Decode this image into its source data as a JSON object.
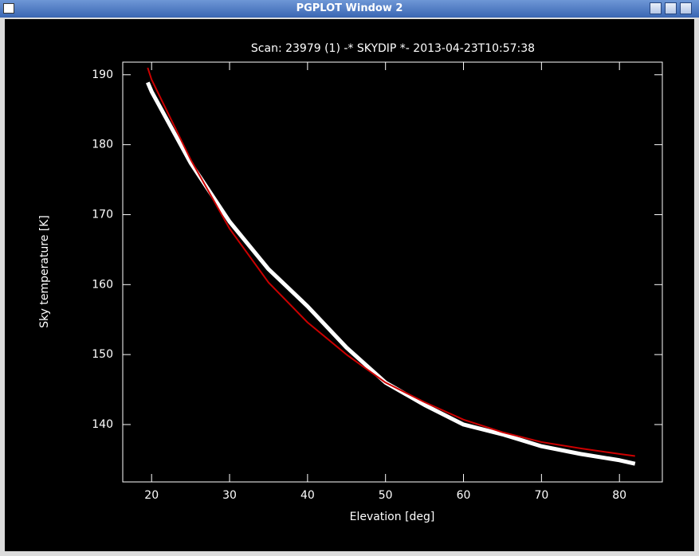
{
  "window": {
    "title": "PGPLOT Window 2"
  },
  "chart_data": {
    "type": "line",
    "title": "Scan: 23979 (1) -* SKYDIP *- 2013-04-23T10:57:38",
    "x_label": "Elevation [deg]",
    "y_label": "Sky temperature [K]",
    "x": [
      19.5,
      20,
      25,
      30,
      35,
      40,
      45,
      50,
      55,
      60,
      65,
      70,
      75,
      80,
      82
    ],
    "series": [
      {
        "color": "#ffffff",
        "values": [
          188.9,
          187.6,
          177.4,
          169,
          162.2,
          156.9,
          151,
          146,
          142.8,
          140,
          138.6,
          136.9,
          135.8,
          134.9,
          134.4
        ]
      },
      {
        "color": "#cc0000",
        "values": [
          191,
          189.3,
          177.9,
          168,
          160.3,
          154.6,
          150,
          146,
          143.2,
          140.7,
          138.9,
          137.5,
          136.6,
          135.8,
          135.5
        ]
      }
    ],
    "xlim": [
      16.3,
      85.5
    ],
    "xticks": [
      20,
      30,
      40,
      50,
      60,
      70,
      80
    ],
    "ylim": [
      131.8,
      191.8
    ],
    "yticks": [
      140,
      150,
      160,
      170,
      180,
      190
    ]
  }
}
